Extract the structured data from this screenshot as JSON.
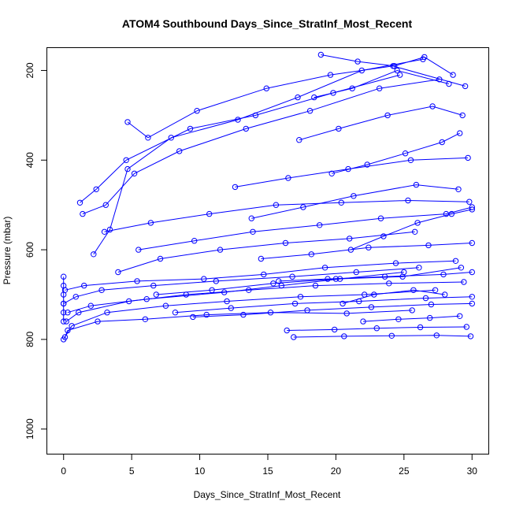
{
  "chart_data": {
    "type": "scatter",
    "title": "ATOM4 Southbound Days_Since_StratInf_Most_Recent",
    "xlabel": "Days_Since_StratInf_Most_Recent",
    "ylabel": "Pressure (mbar)",
    "xlim": [
      -1.2,
      31.2
    ],
    "ylim": [
      1055,
      150
    ],
    "y_reversed": true,
    "x_ticks": [
      0,
      5,
      10,
      15,
      20,
      25,
      30
    ],
    "x_tick_labels": [
      "0",
      "5",
      "10",
      "15",
      "20",
      "25",
      "30"
    ],
    "y_ticks": [
      200,
      400,
      600,
      800,
      1000
    ],
    "y_tick_labels": [
      "200",
      "400",
      "600",
      "800",
      "1000"
    ],
    "grid": false,
    "legend": "none",
    "marker": "open-circle",
    "connect_points": true,
    "color": "#0000ff",
    "series": [
      {
        "x": [
          0.1,
          0.3,
          2.5,
          6.0,
          10.5,
          15.2,
          20.8,
          25.6
        ],
        "y": [
          795,
          780,
          760,
          755,
          745,
          740,
          742,
          735
        ]
      },
      {
        "x": [
          0.0,
          0.6,
          3.2,
          7.5,
          12.0,
          17.4,
          22.1,
          27.3
        ],
        "y": [
          800,
          770,
          740,
          725,
          715,
          705,
          700,
          690
        ]
      },
      {
        "x": [
          0.2,
          1.1,
          4.8,
          9.0,
          13.6,
          18.5,
          23.9,
          29.4
        ],
        "y": [
          760,
          740,
          715,
          700,
          690,
          680,
          675,
          672
        ]
      },
      {
        "x": [
          0.0,
          0.9,
          2.8,
          6.6,
          11.2,
          16.8,
          21.5,
          26.1
        ],
        "y": [
          720,
          705,
          690,
          680,
          670,
          660,
          650,
          640
        ]
      },
      {
        "x": [
          0.1,
          1.5,
          5.4,
          10.3,
          14.7,
          19.2,
          24.4,
          28.8
        ],
        "y": [
          690,
          680,
          670,
          665,
          655,
          640,
          630,
          625
        ]
      },
      {
        "x": [
          0.3,
          2.0,
          6.1,
          11.8,
          16.0,
          20.3,
          25.0
        ],
        "y": [
          740,
          725,
          710,
          695,
          680,
          665,
          650
        ]
      },
      {
        "x": [
          1.2,
          2.4,
          4.6,
          9.3,
          14.1,
          19.8,
          24.7
        ],
        "y": [
          495,
          465,
          400,
          330,
          300,
          250,
          210
        ]
      },
      {
        "x": [
          1.4,
          3.1,
          5.2,
          8.5,
          13.4,
          18.1,
          23.2,
          27.6
        ],
        "y": [
          520,
          500,
          430,
          380,
          330,
          290,
          240,
          220
        ]
      },
      {
        "x": [
          2.2,
          3.4,
          4.7,
          7.9,
          12.8,
          17.2,
          21.9,
          26.4
        ],
        "y": [
          610,
          555,
          420,
          350,
          310,
          260,
          200,
          175
        ]
      },
      {
        "x": [
          4.7,
          6.2,
          9.8,
          14.9,
          19.6,
          24.2,
          29.5
        ],
        "y": [
          315,
          350,
          290,
          240,
          210,
          190,
          235
        ]
      },
      {
        "x": [
          3.0,
          6.4,
          10.7,
          15.6,
          20.4,
          25.3,
          29.8
        ],
        "y": [
          560,
          540,
          520,
          500,
          495,
          490,
          493
        ]
      },
      {
        "x": [
          4.0,
          7.1,
          11.5,
          16.3,
          21.0,
          25.8
        ],
        "y": [
          650,
          620,
          600,
          585,
          575,
          560
        ]
      },
      {
        "x": [
          5.5,
          9.6,
          13.9,
          18.8,
          23.3,
          28.1,
          30.0
        ],
        "y": [
          600,
          580,
          560,
          545,
          530,
          520,
          505
        ]
      },
      {
        "x": [
          6.8,
          10.9,
          15.4,
          20.0,
          24.9,
          29.2
        ],
        "y": [
          700,
          690,
          675,
          665,
          660,
          640
        ]
      },
      {
        "x": [
          8.2,
          12.3,
          17.0,
          21.7,
          26.6,
          30.0
        ],
        "y": [
          740,
          730,
          720,
          715,
          708,
          705
        ]
      },
      {
        "x": [
          9.5,
          13.2,
          17.9,
          22.6,
          27.0,
          30.0
        ],
        "y": [
          750,
          745,
          735,
          728,
          722,
          720
        ]
      },
      {
        "x": [
          12.6,
          16.5,
          20.9,
          25.5,
          29.7
        ],
        "y": [
          460,
          440,
          420,
          400,
          395
        ]
      },
      {
        "x": [
          13.8,
          17.6,
          21.3,
          25.9,
          29.0
        ],
        "y": [
          530,
          505,
          480,
          455,
          465
        ]
      },
      {
        "x": [
          14.5,
          18.2,
          22.4,
          26.8,
          30.0
        ],
        "y": [
          620,
          610,
          595,
          590,
          585
        ]
      },
      {
        "x": [
          15.8,
          19.4,
          23.6,
          27.9,
          30.0
        ],
        "y": [
          670,
          665,
          660,
          655,
          650
        ]
      },
      {
        "x": [
          16.4,
          19.9,
          23.0,
          26.2,
          29.6
        ],
        "y": [
          780,
          778,
          775,
          773,
          772
        ]
      },
      {
        "x": [
          16.9,
          20.6,
          24.1,
          27.4,
          29.9
        ],
        "y": [
          795,
          793,
          792,
          791,
          793
        ]
      },
      {
        "x": [
          17.3,
          20.2,
          23.8,
          27.1,
          29.3
        ],
        "y": [
          355,
          330,
          300,
          280,
          300
        ]
      },
      {
        "x": [
          18.4,
          21.2,
          24.5,
          28.3
        ],
        "y": [
          260,
          240,
          200,
          230
        ]
      },
      {
        "x": [
          18.9,
          21.6,
          24.3,
          26.5,
          28.6
        ],
        "y": [
          165,
          180,
          190,
          170,
          210
        ]
      },
      {
        "x": [
          19.7,
          22.3,
          25.1,
          27.8,
          29.1
        ],
        "y": [
          430,
          410,
          385,
          360,
          340
        ]
      },
      {
        "x": [
          20.5,
          22.8,
          25.7,
          28.0
        ],
        "y": [
          720,
          700,
          690,
          700
        ]
      },
      {
        "x": [
          21.1,
          23.5,
          26.0,
          28.5,
          30.0
        ],
        "y": [
          600,
          570,
          540,
          520,
          510
        ]
      },
      {
        "x": [
          22.0,
          24.6,
          26.9,
          29.1
        ],
        "y": [
          760,
          755,
          752,
          748
        ]
      },
      {
        "x": [
          0.0,
          0.0,
          0.0,
          0.0,
          0.0,
          0.0
        ],
        "y": [
          660,
          680,
          700,
          720,
          740,
          760
        ]
      }
    ]
  }
}
